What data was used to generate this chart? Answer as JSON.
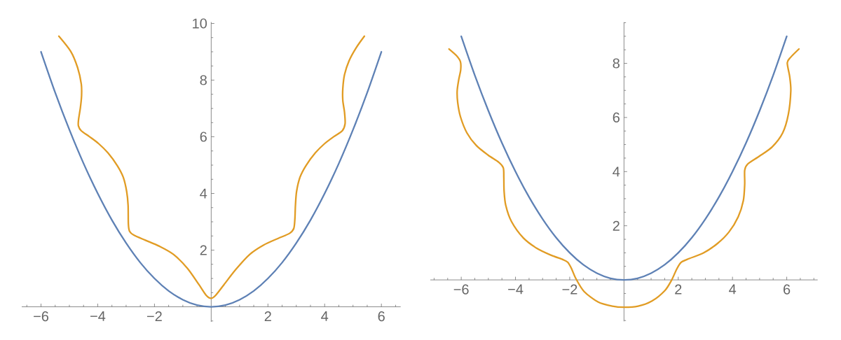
{
  "chart_data": [
    {
      "type": "line",
      "xlim": [
        -6.68,
        6.68
      ],
      "ylim": [
        -0.53,
        10.05
      ],
      "xticks": [
        {
          "value": -6.5,
          "label": null
        },
        {
          "value": -6,
          "label": "−6"
        },
        {
          "value": -5.5,
          "label": null
        },
        {
          "value": -5,
          "label": null
        },
        {
          "value": -4.5,
          "label": null
        },
        {
          "value": -4,
          "label": "−4"
        },
        {
          "value": -3.5,
          "label": null
        },
        {
          "value": -3,
          "label": null
        },
        {
          "value": -2.5,
          "label": null
        },
        {
          "value": -2,
          "label": "−2"
        },
        {
          "value": -1.5,
          "label": null
        },
        {
          "value": -1,
          "label": null
        },
        {
          "value": -0.5,
          "label": null
        },
        {
          "value": 0.5,
          "label": null
        },
        {
          "value": 1,
          "label": null
        },
        {
          "value": 1.5,
          "label": null
        },
        2,
        {
          "value": 2.5,
          "label": null
        },
        {
          "value": 3,
          "label": null
        },
        {
          "value": 3.5,
          "label": null
        },
        4,
        {
          "value": 4.5,
          "label": null
        },
        {
          "value": 5,
          "label": null
        },
        {
          "value": 5.5,
          "label": null
        },
        6,
        {
          "value": 6.5,
          "label": null
        }
      ],
      "yticks": [
        {
          "value": -0.5,
          "label": null
        },
        {
          "value": 0.5,
          "label": null
        },
        {
          "value": 1,
          "label": null
        },
        {
          "value": 1.5,
          "label": null
        },
        2,
        {
          "value": 2.5,
          "label": null
        },
        {
          "value": 3,
          "label": null
        },
        {
          "value": 3.5,
          "label": null
        },
        4,
        {
          "value": 4.5,
          "label": null
        },
        {
          "value": 5,
          "label": null
        },
        {
          "value": 5.5,
          "label": null
        },
        6,
        {
          "value": 6.5,
          "label": null
        },
        {
          "value": 7,
          "label": null
        },
        {
          "value": 7.5,
          "label": null
        },
        8,
        {
          "value": 8.5,
          "label": null
        },
        {
          "value": 9,
          "label": null
        },
        {
          "value": 9.5,
          "label": null
        },
        10
      ],
      "series": [
        {
          "color": "#5e81b5",
          "x": [
            -6,
            -5.5,
            -5,
            -4.5,
            -4,
            -3.5,
            -3,
            -2.5,
            -2,
            -1.5,
            -1,
            -0.5,
            0,
            0.5,
            1,
            1.5,
            2,
            2.5,
            3,
            3.5,
            4,
            4.5,
            5,
            5.5,
            6
          ],
          "values": [
            9,
            7.56,
            6.25,
            5.06,
            4,
            3.06,
            2.25,
            1.56,
            1,
            0.56,
            0.25,
            0.06,
            0,
            0.06,
            0.25,
            0.56,
            1,
            1.56,
            2.25,
            3.06,
            4,
            5.06,
            6.25,
            7.56,
            9
          ]
        },
        {
          "color": "#e19c24",
          "x": [
            -5.37,
            -4.95,
            -4.71,
            -4.58,
            -4.57,
            -4.61,
            -4.68,
            -4.68,
            -4.58,
            -4.3,
            -3.97,
            -3.64,
            -3.31,
            -3.1,
            -2.98,
            -2.93,
            -2.92,
            -2.88,
            -2.73,
            -2.32,
            -1.83,
            -1.33,
            -0.84,
            -0.43,
            -0.18,
            0,
            0.16,
            0.45,
            0.87,
            1.36,
            1.85,
            2.35,
            2.76,
            2.91,
            2.95,
            2.97,
            3.01,
            3.13,
            3.34,
            3.67,
            4.0,
            4.33,
            4.62,
            4.72,
            4.7,
            4.64,
            4.64,
            4.7,
            4.86,
            5.11,
            5.4
          ],
          "values": [
            9.55,
            9.01,
            8.44,
            7.86,
            7.45,
            7.04,
            6.58,
            6.38,
            6.21,
            6.01,
            5.76,
            5.43,
            4.98,
            4.57,
            4.07,
            3.58,
            2.92,
            2.67,
            2.53,
            2.35,
            2.14,
            1.85,
            1.36,
            0.78,
            0.41,
            0.3,
            0.41,
            0.78,
            1.32,
            1.85,
            2.18,
            2.41,
            2.59,
            2.76,
            3.09,
            3.58,
            4.07,
            4.57,
            4.98,
            5.43,
            5.76,
            6.01,
            6.21,
            6.46,
            6.87,
            7.28,
            7.7,
            8.19,
            8.68,
            9.14,
            9.55
          ]
        }
      ]
    },
    {
      "type": "line",
      "xlim": [
        -7.14,
        7.14
      ],
      "ylim": [
        -1.53,
        9.52
      ],
      "xticks": [
        {
          "value": -7,
          "label": null
        },
        {
          "value": -6.5,
          "label": null
        },
        {
          "value": -6,
          "label": "−6"
        },
        {
          "value": -5.5,
          "label": null
        },
        {
          "value": -5,
          "label": null
        },
        {
          "value": -4.5,
          "label": null
        },
        {
          "value": -4,
          "label": "−4"
        },
        {
          "value": -3.5,
          "label": null
        },
        {
          "value": -3,
          "label": null
        },
        {
          "value": -2.5,
          "label": null
        },
        {
          "value": -2,
          "label": "−2"
        },
        {
          "value": -1.5,
          "label": null
        },
        {
          "value": -1,
          "label": null
        },
        {
          "value": -0.5,
          "label": null
        },
        {
          "value": 0.5,
          "label": null
        },
        {
          "value": 1,
          "label": null
        },
        {
          "value": 1.5,
          "label": null
        },
        2,
        {
          "value": 2.5,
          "label": null
        },
        {
          "value": 3,
          "label": null
        },
        {
          "value": 3.5,
          "label": null
        },
        4,
        {
          "value": 4.5,
          "label": null
        },
        {
          "value": 5,
          "label": null
        },
        {
          "value": 5.5,
          "label": null
        },
        6,
        {
          "value": 6.5,
          "label": null
        },
        {
          "value": 7,
          "label": null
        }
      ],
      "yticks": [
        {
          "value": -1.5,
          "label": null
        },
        {
          "value": -1,
          "label": null
        },
        {
          "value": -0.5,
          "label": null
        },
        {
          "value": 0.5,
          "label": null
        },
        {
          "value": 1,
          "label": null
        },
        {
          "value": 1.5,
          "label": null
        },
        2,
        {
          "value": 2.5,
          "label": null
        },
        {
          "value": 3,
          "label": null
        },
        {
          "value": 3.5,
          "label": null
        },
        4,
        {
          "value": 4.5,
          "label": null
        },
        {
          "value": 5,
          "label": null
        },
        {
          "value": 5.5,
          "label": null
        },
        6,
        {
          "value": 6.5,
          "label": null
        },
        {
          "value": 7,
          "label": null
        },
        {
          "value": 7.5,
          "label": null
        },
        8,
        {
          "value": 8.5,
          "label": null
        },
        {
          "value": 9,
          "label": null
        },
        {
          "value": 9.5,
          "label": null
        }
      ],
      "series": [
        {
          "color": "#5e81b5",
          "x": [
            -6,
            -5.5,
            -5,
            -4.5,
            -4,
            -3.5,
            -3,
            -2.5,
            -2,
            -1.5,
            -1,
            -0.5,
            0,
            0.5,
            1,
            1.5,
            2,
            2.5,
            3,
            3.5,
            4,
            4.5,
            5,
            5.5,
            6
          ],
          "values": [
            9,
            7.56,
            6.25,
            5.06,
            4,
            3.06,
            2.25,
            1.56,
            1,
            0.56,
            0.25,
            0.06,
            0,
            0.06,
            0.25,
            0.56,
            1,
            1.56,
            2.25,
            3.06,
            4,
            5.06,
            6.25,
            7.56,
            9
          ]
        },
        {
          "color": "#e19c24",
          "x": [
            -6.45,
            -6.17,
            -6.03,
            -6.02,
            -6.09,
            -6.15,
            -6.13,
            -6.03,
            -5.79,
            -5.44,
            -5.01,
            -4.62,
            -4.45,
            -4.43,
            -4.42,
            -4.36,
            -4.15,
            -3.71,
            -3.2,
            -2.68,
            -2.25,
            -2.07,
            -1.94,
            -1.77,
            -1.47,
            -0.95,
            -0.43,
            0,
            0.52,
            1.03,
            1.51,
            1.76,
            1.94,
            2.11,
            2.41,
            2.92,
            3.44,
            3.87,
            4.21,
            4.4,
            4.45,
            4.45,
            4.56,
            4.99,
            5.46,
            5.85,
            6.06,
            6.15,
            6.11,
            6.02,
            6.15,
            6.45
          ],
          "values": [
            8.53,
            8.28,
            8.06,
            7.76,
            7.41,
            6.98,
            6.55,
            6.03,
            5.43,
            4.96,
            4.61,
            4.35,
            4.14,
            3.79,
            3.28,
            2.76,
            2.16,
            1.55,
            1.16,
            0.91,
            0.75,
            0.65,
            0.43,
            0.04,
            -0.43,
            -0.82,
            -0.97,
            -1.01,
            -0.97,
            -0.78,
            -0.39,
            0,
            0.39,
            0.65,
            0.79,
            0.99,
            1.34,
            1.77,
            2.33,
            2.93,
            3.53,
            4.05,
            4.28,
            4.57,
            4.91,
            5.43,
            6.12,
            6.98,
            7.5,
            8.02,
            8.23,
            8.53
          ]
        }
      ]
    }
  ]
}
